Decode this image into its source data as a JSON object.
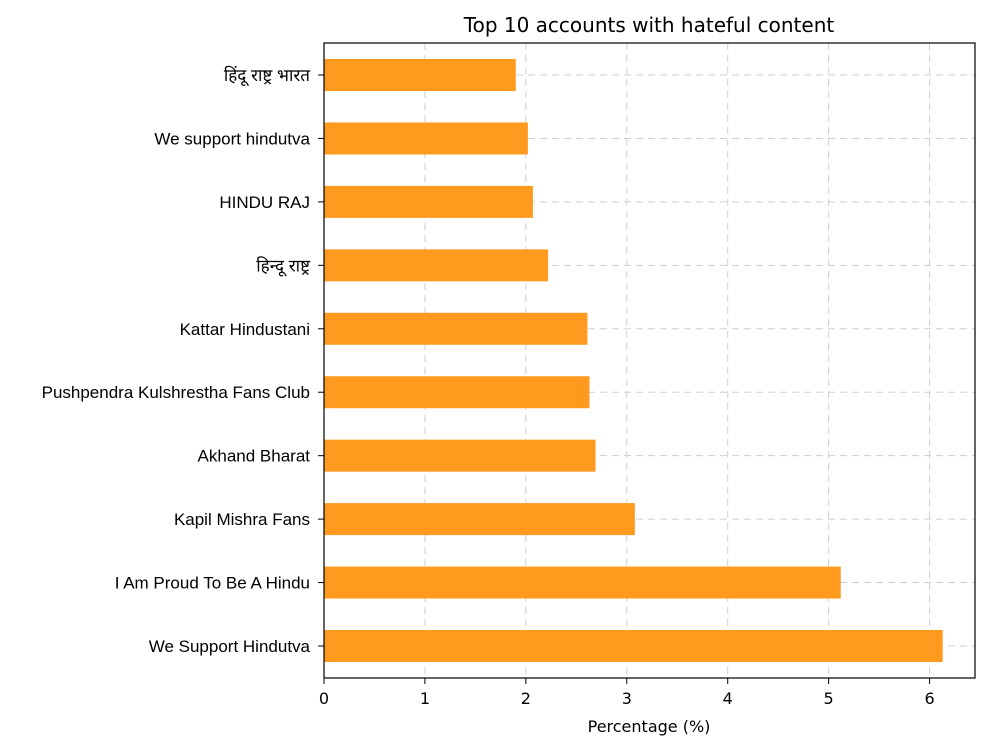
{
  "chart_data": {
    "type": "bar",
    "orientation": "horizontal",
    "title": "Top 10 accounts with hateful content",
    "xlabel": "Percentage (%)",
    "ylabel": "",
    "xlim": [
      0,
      6.45
    ],
    "xticks": [
      0,
      1,
      2,
      3,
      4,
      5,
      6
    ],
    "grid": true,
    "bar_color": "#FF9A1F",
    "categories": [
      "हिंदू राष्ट्र भारत",
      "We support hindutva",
      "HINDU RAJ",
      "हिन्दू राष्ट्र",
      "Kattar Hindustani",
      "Pushpendra Kulshrestha Fans Club",
      "Akhand Bharat",
      "Kapil Mishra Fans",
      "I Am Proud To Be A Hindu",
      "We Support Hindutva"
    ],
    "values": [
      1.9,
      2.02,
      2.07,
      2.22,
      2.61,
      2.63,
      2.69,
      3.08,
      5.12,
      6.13
    ]
  }
}
